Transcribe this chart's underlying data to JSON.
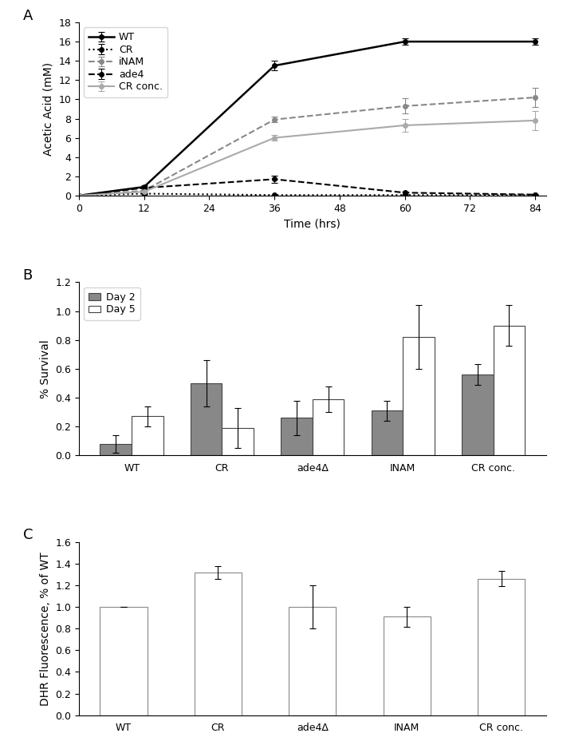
{
  "panel_A": {
    "time_points": [
      0,
      12,
      36,
      60,
      84
    ],
    "series": {
      "WT": {
        "values": [
          0.0,
          0.9,
          13.5,
          16.0,
          16.0
        ],
        "errors": [
          0.0,
          0.15,
          0.5,
          0.3,
          0.3
        ],
        "color": "#000000",
        "linestyle": "-",
        "marker": "o",
        "markersize": 4,
        "linewidth": 1.8,
        "label": "WT"
      },
      "CR": {
        "values": [
          0.0,
          0.2,
          0.05,
          0.05,
          0.05
        ],
        "errors": [
          0.0,
          0.05,
          0.02,
          0.02,
          0.02
        ],
        "color": "#000000",
        "linestyle": ":",
        "marker": "o",
        "markersize": 4,
        "linewidth": 1.5,
        "label": "CR"
      },
      "iNAM": {
        "values": [
          0.0,
          0.5,
          7.9,
          9.3,
          10.2
        ],
        "errors": [
          0.0,
          0.1,
          0.3,
          0.8,
          1.0
        ],
        "color": "#888888",
        "linestyle": "--",
        "marker": "o",
        "markersize": 4,
        "linewidth": 1.5,
        "label": "iNAM"
      },
      "ade4": {
        "values": [
          0.0,
          0.8,
          1.7,
          0.3,
          0.1
        ],
        "errors": [
          0.0,
          0.1,
          0.35,
          0.1,
          0.05
        ],
        "color": "#000000",
        "linestyle": "--",
        "marker": "o",
        "markersize": 4,
        "linewidth": 1.5,
        "label": "ade4"
      },
      "CR_conc": {
        "values": [
          0.0,
          0.4,
          6.0,
          7.3,
          7.8
        ],
        "errors": [
          0.0,
          0.1,
          0.3,
          0.7,
          1.0
        ],
        "color": "#aaaaaa",
        "linestyle": "-",
        "marker": "o",
        "markersize": 4,
        "linewidth": 1.5,
        "label": "CR conc."
      }
    },
    "xlabel": "Time (hrs)",
    "ylabel": "Acetic Acid (mM)",
    "ylim": [
      0,
      18
    ],
    "yticks": [
      0,
      2,
      4,
      6,
      8,
      10,
      12,
      14,
      16,
      18
    ],
    "xticks": [
      0,
      12,
      24,
      36,
      48,
      60,
      72,
      84
    ]
  },
  "panel_B": {
    "categories": [
      "WT",
      "CR",
      "ade4Δ",
      "INAM",
      "CR conc."
    ],
    "day2_values": [
      0.08,
      0.5,
      0.26,
      0.31,
      0.56
    ],
    "day2_errors": [
      0.06,
      0.16,
      0.12,
      0.07,
      0.07
    ],
    "day5_values": [
      0.27,
      0.19,
      0.39,
      0.82,
      0.9
    ],
    "day5_errors": [
      0.07,
      0.14,
      0.09,
      0.22,
      0.14
    ],
    "day2_color": "#888888",
    "day5_color": "#ffffff",
    "day2_edgecolor": "#444444",
    "day5_edgecolor": "#444444",
    "ylabel": "% Survival",
    "ylim": [
      0,
      1.2
    ],
    "yticks": [
      0,
      0.2,
      0.4,
      0.6,
      0.8,
      1.0,
      1.2
    ],
    "bar_width": 0.35
  },
  "panel_C": {
    "categories": [
      "WT",
      "CR",
      "ade4Δ",
      "INAM",
      "CR conc."
    ],
    "values": [
      1.0,
      1.32,
      1.0,
      0.91,
      1.26
    ],
    "errors": [
      0.0,
      0.06,
      0.2,
      0.09,
      0.07
    ],
    "bar_color": "#ffffff",
    "bar_edgecolor": "#888888",
    "ylabel": "DHR Fluorescence, % of WT",
    "ylim": [
      0,
      1.6
    ],
    "yticks": [
      0,
      0.2,
      0.4,
      0.6,
      0.8,
      1.0,
      1.2,
      1.4,
      1.6
    ],
    "bar_width": 0.5
  },
  "panel_labels": [
    "A",
    "B",
    "C"
  ],
  "label_fontsize": 13,
  "tick_fontsize": 9,
  "axis_label_fontsize": 10,
  "legend_fontsize": 9
}
